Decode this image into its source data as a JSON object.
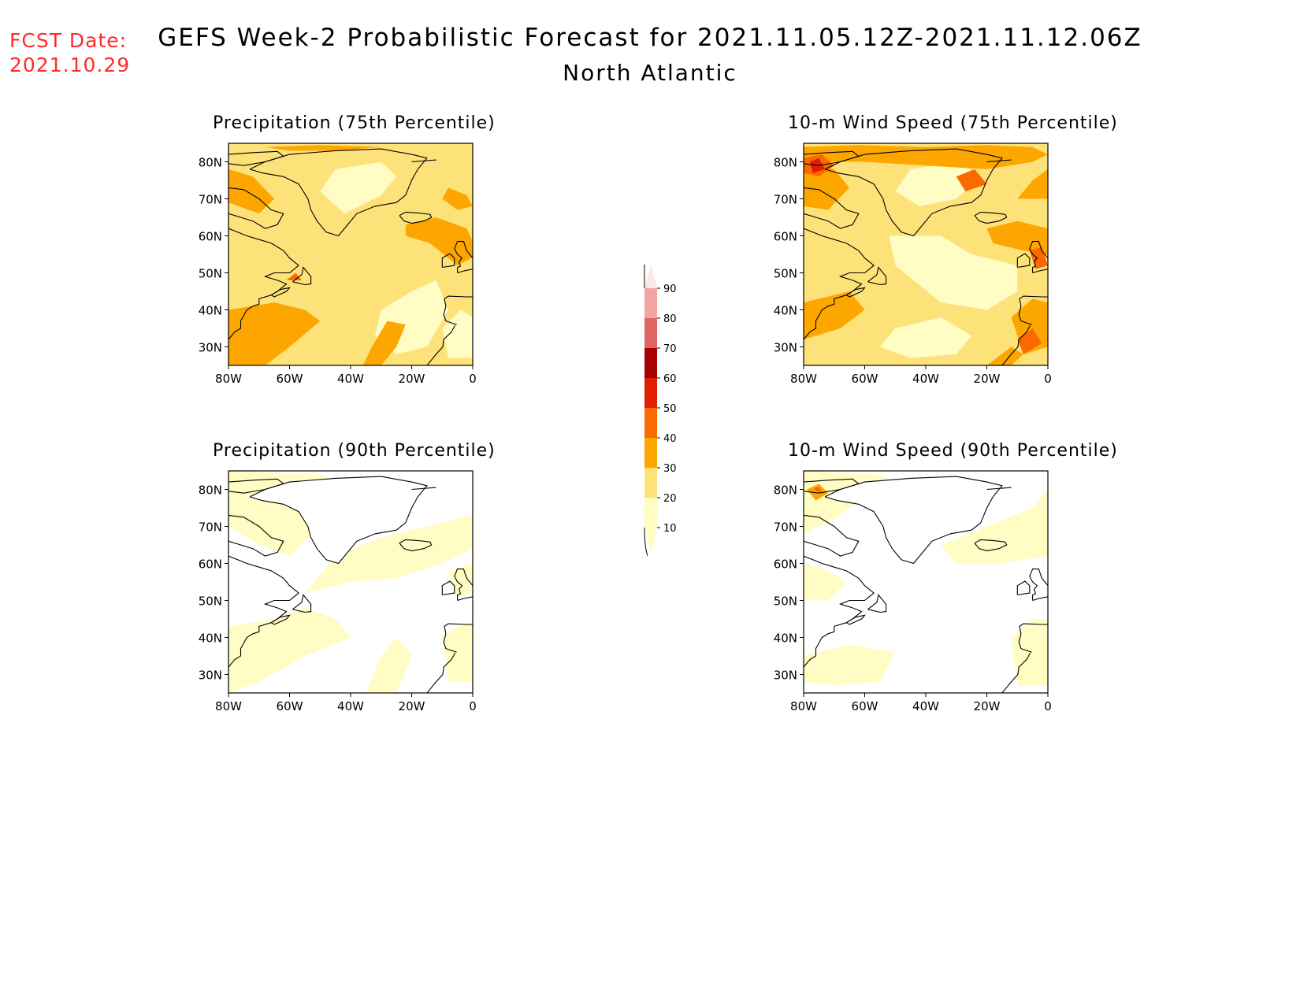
{
  "header": {
    "fcst_label": "FCST Date:",
    "fcst_date": "2021.10.29",
    "title": "GEFS Week-2 Probabilistic Forecast for 2021.11.05.12Z-2021.11.12.06Z",
    "region": "North Atlantic"
  },
  "axes": {
    "lat_labels": [
      "80N",
      "70N",
      "60N",
      "50N",
      "40N",
      "30N"
    ],
    "lon_labels": [
      "80W",
      "60W",
      "40W",
      "20W",
      "0"
    ]
  },
  "panels": [
    {
      "title": "Precipitation (75th Percentile)",
      "variable": "precip_p75"
    },
    {
      "title": "10-m Wind Speed (75th Percentile)",
      "variable": "wind_p75"
    },
    {
      "title": "Precipitation (90th Percentile)",
      "variable": "precip_p90"
    },
    {
      "title": "10-m Wind Speed (90th Percentile)",
      "variable": "wind_p90"
    }
  ],
  "colorbar": {
    "levels": [
      "10",
      "20",
      "30",
      "40",
      "50",
      "60",
      "70",
      "80",
      "90"
    ],
    "colors": [
      "#fffcc4",
      "#fde27a",
      "#fda600",
      "#fb6a00",
      "#e01e00",
      "#a60000",
      "#e06666",
      "#f4a4a4",
      "#fde8e8"
    ]
  },
  "colors": {
    "fcst_label": "#ff2a2a",
    "coastline": "#000000",
    "background": "#ffffff"
  }
}
